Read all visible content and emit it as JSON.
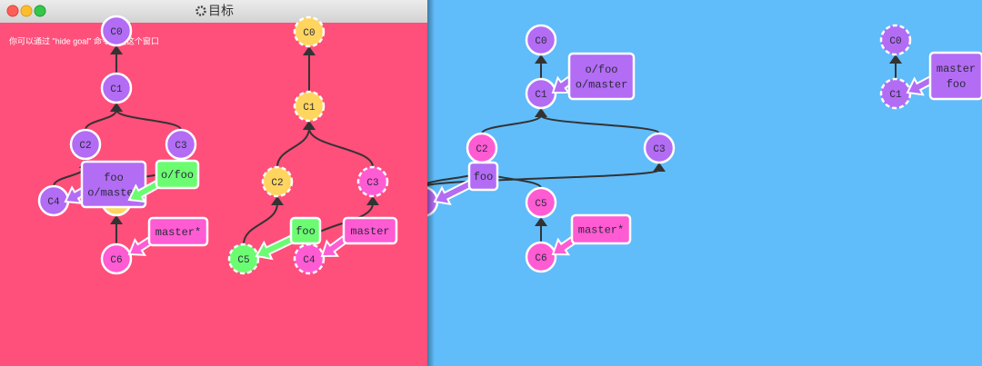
{
  "goal_window": {
    "title": "目标",
    "hint": "你可以通过 \"hide goal\" 命令关闭这个窗口",
    "local_nodes": [
      "C0",
      "C1",
      "C2",
      "C3",
      "C4",
      "C6"
    ],
    "local_branches": [
      [
        "foo",
        "o/master"
      ],
      [
        "o/foo"
      ],
      [
        "master*"
      ]
    ],
    "remote_nodes": [
      "C0",
      "C1",
      "C2",
      "C3",
      "C5",
      "C4"
    ],
    "remote_branches": [
      [
        "foo"
      ],
      [
        "master"
      ]
    ]
  },
  "main_view": {
    "local_nodes": [
      "C0",
      "C1",
      "C2",
      "C3",
      "C5",
      "C6"
    ],
    "local_branches": [
      [
        "o/foo",
        "o/master"
      ],
      [
        "foo"
      ],
      [
        "master*"
      ]
    ],
    "remote_nodes": [
      "C0",
      "C1"
    ],
    "remote_branches": [
      [
        "master",
        "foo"
      ]
    ]
  }
}
